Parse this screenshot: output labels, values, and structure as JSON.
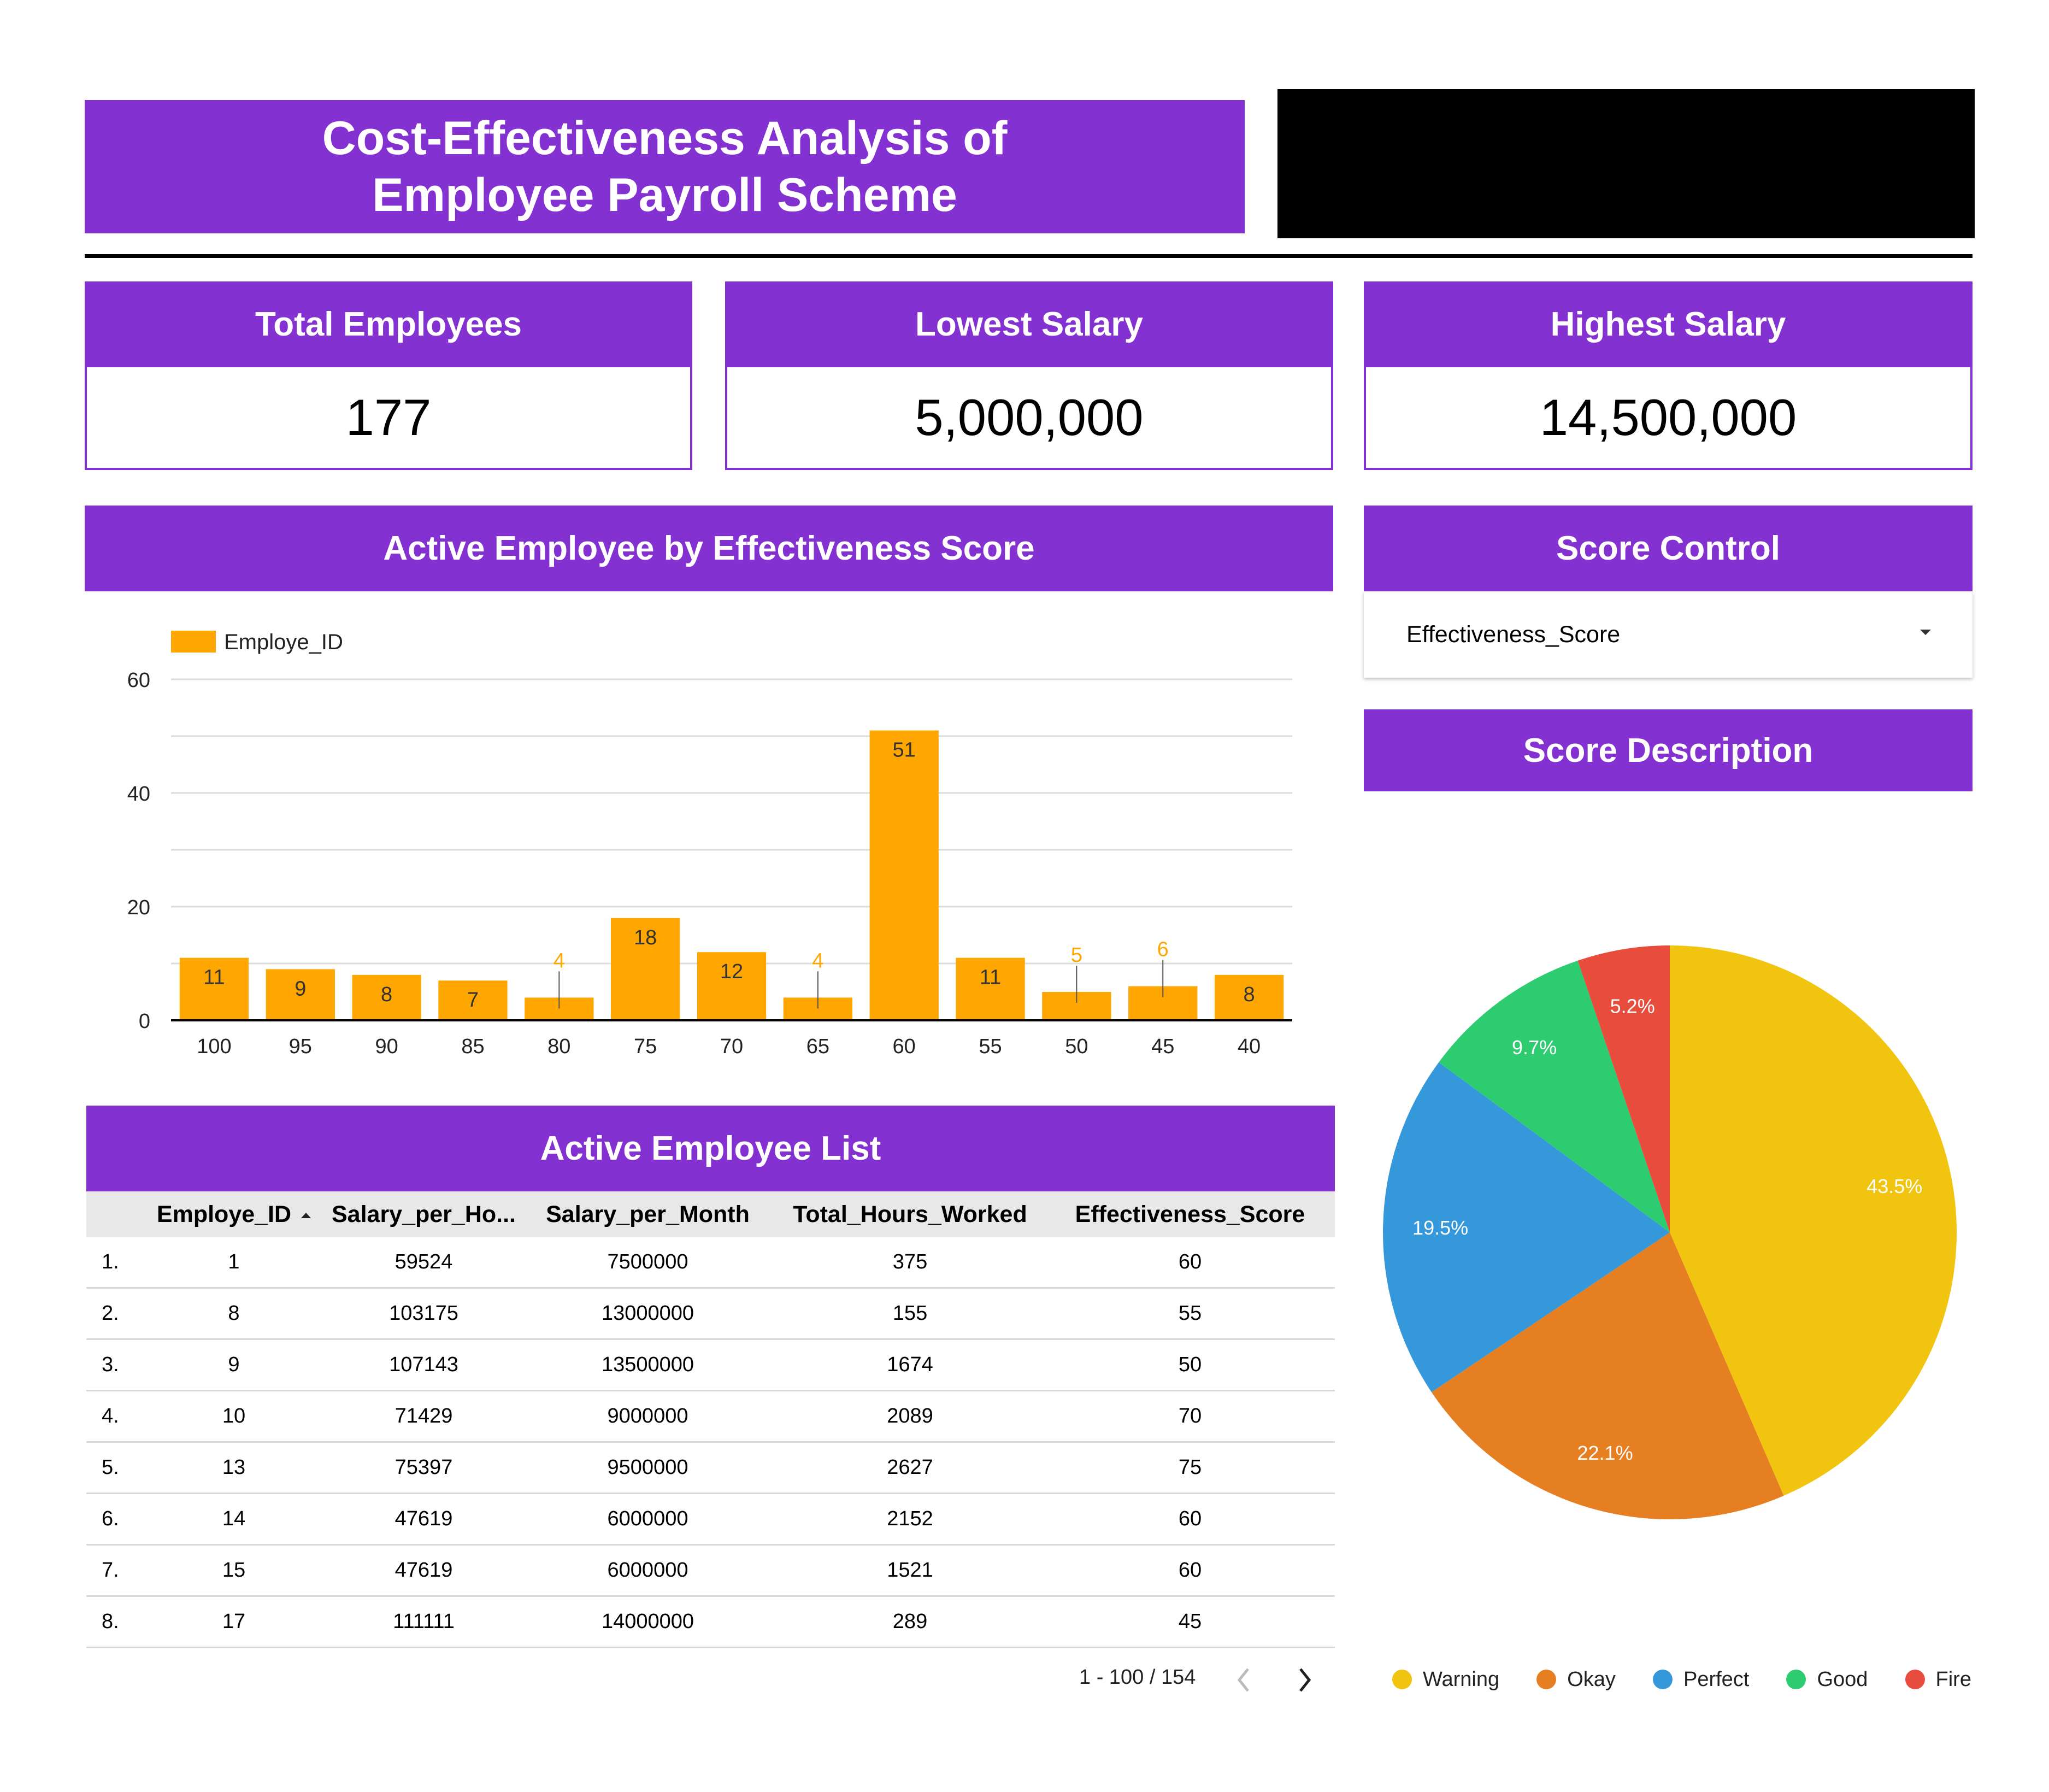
{
  "header": {
    "title_line1": "Cost-Effectiveness Analysis of",
    "title_line2": "Employee Payroll Scheme"
  },
  "kpis": [
    {
      "label": "Total Employees",
      "value": "177"
    },
    {
      "label": "Lowest Salary",
      "value": "5,000,000"
    },
    {
      "label": "Highest Salary",
      "value": "14,500,000"
    }
  ],
  "bar_section": {
    "title": "Active Employee by Effectiveness Score"
  },
  "score_control": {
    "title": "Score Control",
    "selected": "Effectiveness_Score"
  },
  "score_description": {
    "title": "Score Description"
  },
  "table_section": {
    "title": "Active Employee List",
    "columns": [
      "Employe_ID",
      "Salary_per_Ho...",
      "Salary_per_Month",
      "Total_Hours_Worked",
      "Effectiveness_Score"
    ],
    "rows": [
      [
        "1.",
        "1",
        "59524",
        "7500000",
        "375",
        "60"
      ],
      [
        "2.",
        "8",
        "103175",
        "13000000",
        "155",
        "55"
      ],
      [
        "3.",
        "9",
        "107143",
        "13500000",
        "1674",
        "50"
      ],
      [
        "4.",
        "10",
        "71429",
        "9000000",
        "2089",
        "70"
      ],
      [
        "5.",
        "13",
        "75397",
        "9500000",
        "2627",
        "75"
      ],
      [
        "6.",
        "14",
        "47619",
        "6000000",
        "2152",
        "60"
      ],
      [
        "7.",
        "15",
        "47619",
        "6000000",
        "1521",
        "60"
      ],
      [
        "8.",
        "17",
        "111111",
        "14000000",
        "289",
        "45"
      ]
    ],
    "pagination": "1 - 100 / 154"
  },
  "chart_data": [
    {
      "type": "bar",
      "categories": [
        "100",
        "95",
        "90",
        "85",
        "80",
        "75",
        "70",
        "65",
        "60",
        "55",
        "50",
        "45",
        "40"
      ],
      "series": [
        {
          "name": "Employe_ID",
          "values": [
            11,
            9,
            8,
            7,
            4,
            18,
            12,
            4,
            51,
            11,
            5,
            6,
            8
          ],
          "color": "#ffa600"
        }
      ],
      "ylim": [
        0,
        60
      ],
      "yticks": [
        0,
        20,
        40,
        60
      ],
      "grid": true,
      "legend": "top-left"
    },
    {
      "type": "pie",
      "labels": [
        "Warning",
        "Okay",
        "Perfect",
        "Good",
        "Fire"
      ],
      "values": [
        43.5,
        22.1,
        19.5,
        9.7,
        5.2
      ],
      "value_labels": [
        "43.5%",
        "22.1%",
        "19.5%",
        "9.7%",
        "5.2%"
      ],
      "colors": [
        "#f1c40f",
        "#e67e22",
        "#3498db",
        "#2ecc71",
        "#e74c3c"
      ],
      "legend": "bottom"
    }
  ]
}
